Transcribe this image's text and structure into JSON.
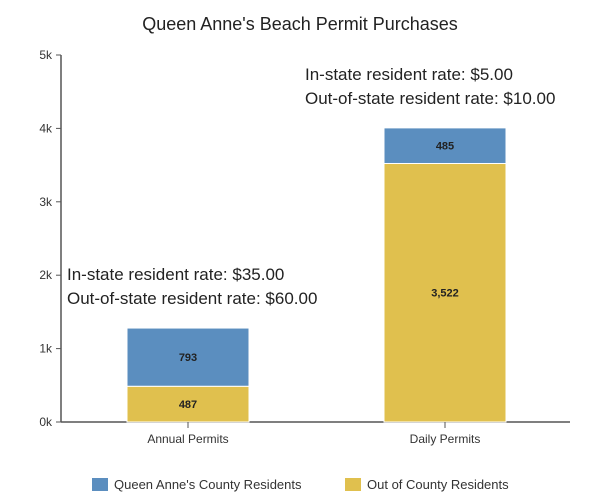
{
  "chart_data": {
    "type": "bar",
    "stacked": true,
    "title": "Queen Anne's Beach Permit Purchases",
    "xlabel": "",
    "ylabel": "",
    "ylim": [
      0,
      5000
    ],
    "yticks": [
      {
        "value": 0,
        "label": "0k"
      },
      {
        "value": 1000,
        "label": "1k"
      },
      {
        "value": 2000,
        "label": "2k"
      },
      {
        "value": 3000,
        "label": "3k"
      },
      {
        "value": 4000,
        "label": "4k"
      },
      {
        "value": 5000,
        "label": "5k"
      }
    ],
    "grid": false,
    "categories": [
      "Annual Permits",
      "Daily Permits"
    ],
    "series": [
      {
        "name": "Out of County Residents",
        "values": [
          487,
          3522
        ],
        "labels": [
          "487",
          "3,522"
        ],
        "color": "#e0c04e"
      },
      {
        "name": "Queen Anne's County Residents",
        "values": [
          793,
          485
        ],
        "labels": [
          "793",
          "485"
        ],
        "color": "#5b8ebf"
      }
    ],
    "legend_position": "bottom",
    "legend_order": [
      1,
      0
    ],
    "annotations": [
      {
        "category": "Annual Permits",
        "lines": [
          "In-state resident rate: $35.00",
          "Out-of-state resident rate: $60.00"
        ]
      },
      {
        "category": "Daily Permits",
        "lines": [
          "In-state resident rate: $5.00",
          "Out-of-state resident rate: $10.00"
        ]
      }
    ]
  }
}
